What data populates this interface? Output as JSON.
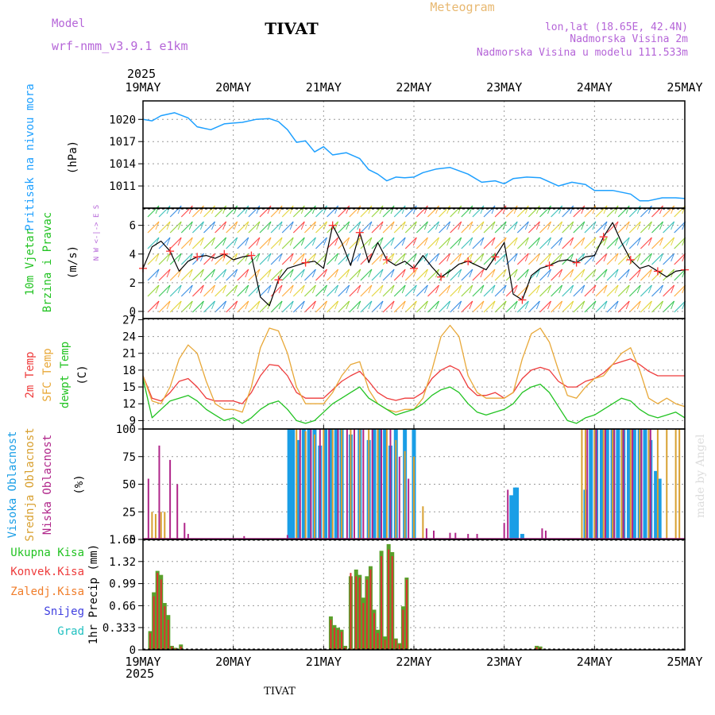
{
  "header": {
    "model_label": "Model",
    "model_name": "wrf-nmm_v3.9.1 e1km",
    "title": "TIVAT",
    "subtitle": "Meteogram",
    "lonlat": "lon,lat (18.65E, 42.4N)",
    "elevation": "Nadmorska Visina 2m",
    "model_elevation": "Nadmorska Visina u modelu 111.533m",
    "year": "2025",
    "footer_name": "TIVAT",
    "credit": "made by Angel"
  },
  "x_axis": {
    "labels": [
      "19MAY",
      "20MAY",
      "21MAY",
      "22MAY",
      "23MAY",
      "24MAY",
      "25MAY"
    ],
    "range_days": [
      0,
      6
    ]
  },
  "colors": {
    "pressure": "#1ea0ff",
    "temp2m": "#ee3b3b",
    "sfc": "#e8a838",
    "dewpt": "#22c322",
    "high": "#1a9ee6",
    "mid": "#d8a030",
    "low": "#b0268a",
    "precip_total": "#5aa02c",
    "precip_conv": "#e03030"
  },
  "chart_data": [
    {
      "type": "line",
      "name": "pressure",
      "ylabel_a": "Pritisak na nivou mora",
      "ylabel_b": "(hPa)",
      "yticks": [
        "1020",
        "1017",
        "1014",
        "1011"
      ],
      "ylim": [
        1008,
        1022.5
      ],
      "x": [
        0,
        0.1,
        0.2,
        0.35,
        0.5,
        0.6,
        0.75,
        0.9,
        1.0,
        1.1,
        1.25,
        1.4,
        1.5,
        1.6,
        1.7,
        1.8,
        1.9,
        2.0,
        2.1,
        2.25,
        2.4,
        2.5,
        2.6,
        2.7,
        2.8,
        2.9,
        3.0,
        3.1,
        3.25,
        3.4,
        3.6,
        3.75,
        3.9,
        4.0,
        4.1,
        4.25,
        4.4,
        4.6,
        4.75,
        4.9,
        5.0,
        5.2,
        5.4,
        5.5,
        5.6,
        5.75,
        5.9,
        6.0
      ],
      "values": [
        1020,
        1019.8,
        1020.5,
        1020.9,
        1020.2,
        1019,
        1018.6,
        1019.4,
        1019.5,
        1019.6,
        1020,
        1020.1,
        1019.7,
        1018.6,
        1016.9,
        1017.1,
        1015.6,
        1016.3,
        1015.2,
        1015.5,
        1014.7,
        1013.2,
        1012.6,
        1011.7,
        1012.2,
        1012.1,
        1012.2,
        1012.8,
        1013.3,
        1013.5,
        1012.6,
        1011.5,
        1011.7,
        1011.3,
        1012,
        1012.2,
        1012.1,
        1011,
        1011.5,
        1011.2,
        1010.4,
        1010.4,
        1009.9,
        1009,
        1009,
        1009.4,
        1009.4,
        1009.3
      ]
    },
    {
      "type": "line",
      "name": "wind",
      "ylabel_a": "10m Vjetar",
      "ylabel_b": "Brzina i Pravac",
      "ylabel_c": "(m/s)",
      "compass": "N  W <-|-> E  S",
      "yticks": [
        "6",
        "4",
        "2",
        "0"
      ],
      "ylim": [
        -0.5,
        7.2
      ],
      "x": [
        0,
        0.1,
        0.2,
        0.3,
        0.4,
        0.5,
        0.6,
        0.7,
        0.8,
        0.9,
        1.0,
        1.1,
        1.2,
        1.3,
        1.4,
        1.5,
        1.6,
        1.7,
        1.8,
        1.9,
        2.0,
        2.1,
        2.2,
        2.3,
        2.4,
        2.5,
        2.6,
        2.7,
        2.8,
        2.9,
        3.0,
        3.1,
        3.2,
        3.3,
        3.4,
        3.5,
        3.6,
        3.7,
        3.8,
        3.9,
        4.0,
        4.1,
        4.2,
        4.3,
        4.4,
        4.5,
        4.6,
        4.7,
        4.8,
        4.9,
        5.0,
        5.1,
        5.2,
        5.3,
        5.4,
        5.5,
        5.6,
        5.7,
        5.8,
        5.9,
        6.0
      ],
      "values": [
        3.0,
        4.5,
        4.9,
        4.2,
        2.8,
        3.5,
        3.8,
        3.9,
        3.7,
        4.0,
        3.6,
        3.8,
        3.9,
        1.0,
        0.4,
        2.2,
        3.0,
        3.2,
        3.4,
        3.5,
        3.0,
        6.0,
        4.8,
        3.2,
        5.5,
        3.4,
        4.8,
        3.6,
        3.2,
        3.5,
        3.0,
        3.9,
        3.1,
        2.4,
        2.8,
        3.3,
        3.5,
        3.2,
        2.9,
        3.8,
        4.8,
        1.2,
        0.8,
        2.5,
        3.0,
        3.2,
        3.5,
        3.6,
        3.4,
        3.8,
        3.9,
        5.2,
        6.2,
        4.8,
        3.6,
        3.0,
        3.2,
        2.8,
        2.4,
        2.8,
        2.9
      ],
      "legend": []
    },
    {
      "type": "line",
      "name": "temperature",
      "ylabel_a": "2m Temp",
      "ylabel_b": "SFC Temp",
      "ylabel_c": "dewpt Temp",
      "ylabel_d": "(C)",
      "yticks": [
        "27",
        "24",
        "21",
        "18",
        "15",
        "12",
        "9"
      ],
      "ylim": [
        7.5,
        27.2
      ],
      "x": [
        0,
        0.1,
        0.2,
        0.3,
        0.4,
        0.5,
        0.6,
        0.7,
        0.8,
        0.9,
        1.0,
        1.1,
        1.2,
        1.3,
        1.4,
        1.5,
        1.6,
        1.7,
        1.8,
        1.9,
        2.0,
        2.1,
        2.2,
        2.3,
        2.4,
        2.5,
        2.6,
        2.7,
        2.8,
        2.9,
        3.0,
        3.1,
        3.2,
        3.3,
        3.4,
        3.5,
        3.6,
        3.7,
        3.8,
        3.9,
        4.0,
        4.1,
        4.2,
        4.3,
        4.4,
        4.5,
        4.6,
        4.7,
        4.8,
        4.9,
        5.0,
        5.1,
        5.2,
        5.3,
        5.4,
        5.5,
        5.6,
        5.7,
        5.8,
        5.9,
        6.0
      ],
      "series": [
        {
          "name": "2m Temp",
          "values": [
            17,
            13,
            12.5,
            14,
            16,
            16.5,
            15,
            13,
            12.5,
            12.5,
            12.5,
            12,
            14,
            17,
            19,
            18.8,
            17,
            14,
            13,
            13,
            13,
            14.5,
            16,
            17,
            17.8,
            16,
            14,
            13,
            12.6,
            13,
            13,
            14,
            16.5,
            18,
            18.8,
            18,
            15,
            13.5,
            13.5,
            14,
            13,
            14,
            16.5,
            18,
            18.5,
            18,
            16,
            15,
            15,
            16,
            16.5,
            17.5,
            19,
            19.5,
            20,
            19,
            17.8,
            17,
            17,
            17,
            17
          ]
        },
        {
          "name": "SFC Temp",
          "values": [
            17,
            12.5,
            12,
            15,
            20,
            22.5,
            21,
            16,
            12,
            11,
            11,
            10.5,
            15,
            22,
            25.5,
            25,
            21,
            15,
            12,
            12,
            12,
            14,
            17,
            19,
            19.5,
            14.5,
            12,
            11,
            10.5,
            11,
            11,
            13,
            18,
            24,
            26,
            24,
            17,
            14,
            13,
            13,
            13,
            14,
            20,
            24.5,
            25.5,
            23,
            18,
            13.5,
            13,
            15,
            16.5,
            17,
            19,
            21,
            22,
            18,
            13,
            12,
            13,
            12,
            11.5
          ]
        },
        {
          "name": "dewpt Temp",
          "values": [
            16.5,
            9.5,
            11,
            12.5,
            13,
            13.5,
            12.5,
            11,
            10,
            9,
            9.5,
            8.5,
            9.5,
            11,
            12,
            12.5,
            11,
            9,
            8.5,
            9,
            10.5,
            12,
            13,
            14,
            15,
            13,
            12,
            11,
            10,
            10.5,
            11,
            12,
            13.5,
            14.5,
            15,
            14,
            12,
            10.5,
            10,
            10.5,
            11,
            12,
            14,
            15,
            15.5,
            14,
            11.5,
            9,
            8.5,
            9.5,
            10,
            11,
            12,
            13,
            12.5,
            11,
            10,
            9.5,
            10,
            10.5,
            9.5
          ]
        }
      ]
    },
    {
      "type": "bar",
      "name": "clouds",
      "ylabel_a": "Visoka Oblacnost",
      "ylabel_b": "Srednja Oblacnost",
      "ylabel_c": "Niska Oblacnost",
      "ylabel_d": "(%)",
      "yticks": [
        "100",
        "75",
        "50",
        "25",
        "0"
      ],
      "ylim": [
        0,
        100
      ],
      "series": [
        {
          "name": "Visoka Oblacnost",
          "x": [
            1.62,
            1.66,
            1.72,
            1.78,
            1.84,
            1.9,
            1.96,
            2.02,
            2.08,
            2.14,
            2.2,
            2.3,
            2.4,
            2.5,
            2.56,
            2.62,
            2.68,
            2.74,
            2.8,
            2.9,
            3.0,
            4.08,
            4.12,
            4.14,
            4.2,
            4.9,
            4.96,
            5.02,
            5.08,
            5.14,
            5.2,
            5.26,
            5.32,
            5.38,
            5.44,
            5.5,
            5.56,
            5.62,
            5.68,
            5.72
          ],
          "values": [
            100,
            100,
            90,
            100,
            100,
            100,
            85,
            100,
            100,
            100,
            100,
            95,
            100,
            90,
            100,
            100,
            100,
            85,
            100,
            100,
            100,
            40,
            47,
            47,
            5,
            45,
            100,
            100,
            100,
            100,
            100,
            100,
            100,
            100,
            100,
            100,
            100,
            90,
            62,
            55
          ]
        },
        {
          "name": "Srednja Oblacnost",
          "x": [
            0.1,
            0.14,
            0.2,
            0.24,
            1.7,
            1.8,
            1.9,
            2.0,
            2.1,
            2.2,
            2.3,
            2.4,
            2.5,
            2.6,
            2.7,
            2.8,
            2.9,
            3.0,
            3.1,
            4.86,
            4.9,
            5.0,
            5.1,
            5.2,
            5.3,
            5.4,
            5.5,
            5.6,
            5.7,
            5.8,
            5.9,
            5.94
          ],
          "values": [
            25,
            23,
            25,
            25,
            100,
            98,
            95,
            100,
            100,
            100,
            100,
            100,
            100,
            100,
            100,
            90,
            80,
            75,
            30,
            100,
            100,
            100,
            100,
            100,
            100,
            100,
            100,
            100,
            100,
            100,
            100,
            100
          ]
        },
        {
          "name": "Niska Oblacnost",
          "x": [
            0.06,
            0.18,
            0.3,
            0.38,
            0.46,
            0.5,
            1.12,
            1.6,
            1.74,
            1.86,
            1.96,
            2.06,
            2.16,
            2.26,
            2.34,
            2.44,
            2.54,
            2.64,
            2.74,
            2.84,
            2.94,
            3.14,
            3.22,
            3.4,
            3.46,
            3.6,
            3.7,
            4.0,
            4.04,
            4.42,
            4.46,
            4.92,
            5.02,
            5.12,
            5.22,
            5.32,
            5.42,
            5.52,
            5.62
          ],
          "values": [
            55,
            85,
            72,
            50,
            15,
            5,
            3,
            4,
            100,
            100,
            100,
            100,
            100,
            100,
            100,
            100,
            100,
            100,
            100,
            75,
            55,
            10,
            8,
            6,
            6,
            5,
            5,
            15,
            45,
            10,
            8,
            100,
            100,
            100,
            100,
            100,
            100,
            100,
            100
          ]
        }
      ],
      "legend": []
    },
    {
      "type": "bar",
      "name": "precip",
      "legend_labels": [
        "Ukupna Kisa",
        "Konvek.Kisa",
        "Zaledj.Kisa",
        "Snijeg",
        "Grad"
      ],
      "ylabel_a": "1hr Precip (mm)",
      "yticks": [
        "1.65",
        "1.32",
        "0.99",
        "0.66",
        "0.333",
        "0"
      ],
      "ylim": [
        0,
        1.65
      ],
      "x": [
        0.08,
        0.12,
        0.16,
        0.2,
        0.24,
        0.28,
        0.32,
        0.36,
        0.42,
        2.08,
        2.12,
        2.16,
        2.2,
        2.24,
        2.3,
        2.36,
        2.4,
        2.44,
        2.48,
        2.52,
        2.56,
        2.6,
        2.64,
        2.68,
        2.72,
        2.76,
        2.8,
        2.84,
        2.88,
        2.92,
        4.36,
        4.4
      ],
      "series": [
        {
          "name": "Ukupna Kisa",
          "values": [
            0.28,
            0.86,
            1.18,
            1.12,
            0.7,
            0.52,
            0.06,
            0.03,
            0.08,
            0.5,
            0.37,
            0.33,
            0.3,
            0.06,
            1.1,
            1.2,
            1.12,
            0.78,
            1.1,
            1.25,
            0.6,
            0.3,
            1.48,
            0.2,
            1.58,
            1.46,
            0.17,
            0.1,
            0.65,
            1.08,
            0.06,
            0.05
          ]
        },
        {
          "name": "Konvek.Kisa",
          "values": [
            0.25,
            0.8,
            1.15,
            1.05,
            0.65,
            0.45,
            0.05,
            0.02,
            0.05,
            0.45,
            0.33,
            0.3,
            0.27,
            0.04,
            1.15,
            1.1,
            1.08,
            0.7,
            1.05,
            1.2,
            0.55,
            0.25,
            1.4,
            0.15,
            1.5,
            1.4,
            0.15,
            0.08,
            0.6,
            1.05,
            0.04,
            0.03
          ]
        }
      ]
    }
  ]
}
